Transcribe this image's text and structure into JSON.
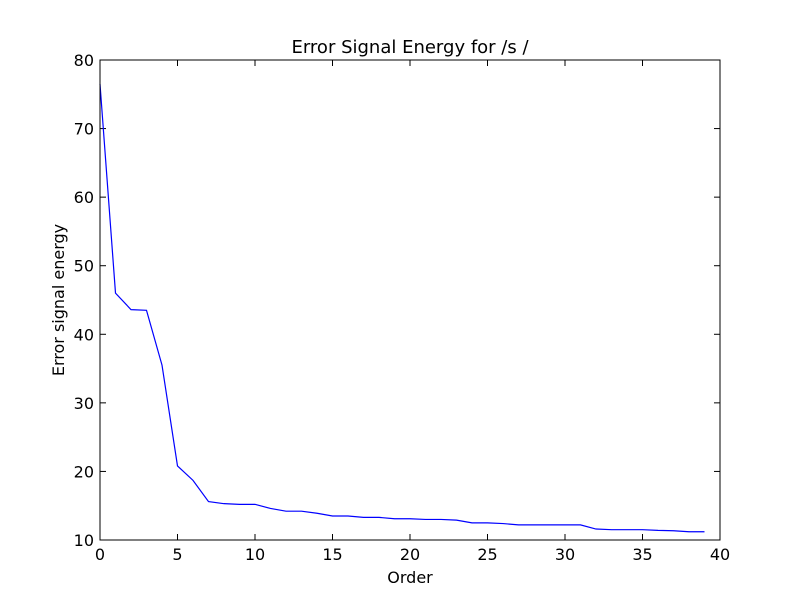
{
  "chart_data": {
    "type": "line",
    "title": "Error Signal Energy for /s /",
    "xlabel": "Order",
    "ylabel": "Error signal energy",
    "xlim": [
      0,
      40
    ],
    "ylim": [
      10,
      80
    ],
    "xticks": [
      0,
      5,
      10,
      15,
      20,
      25,
      30,
      35,
      40
    ],
    "yticks": [
      10,
      20,
      30,
      40,
      50,
      60,
      70,
      80
    ],
    "grid": false,
    "line_color": "#0000ff",
    "series": [
      {
        "x": [
          0,
          1,
          2,
          3,
          4,
          5,
          6,
          7,
          8,
          9,
          10,
          11,
          12,
          13,
          14,
          15,
          16,
          17,
          18,
          19,
          20,
          21,
          22,
          23,
          24,
          25,
          26,
          27,
          28,
          29,
          30,
          31,
          32,
          33,
          34,
          35,
          36,
          37,
          38,
          39
        ],
        "y": [
          76.5,
          46.0,
          43.6,
          43.5,
          35.5,
          20.8,
          18.7,
          15.6,
          15.3,
          15.2,
          15.2,
          14.6,
          14.2,
          14.2,
          13.9,
          13.5,
          13.5,
          13.3,
          13.3,
          13.1,
          13.1,
          13.0,
          13.0,
          12.9,
          12.5,
          12.5,
          12.4,
          12.2,
          12.2,
          12.2,
          12.2,
          12.2,
          11.6,
          11.5,
          11.5,
          11.5,
          11.4,
          11.35,
          11.2,
          11.2
        ]
      }
    ]
  }
}
